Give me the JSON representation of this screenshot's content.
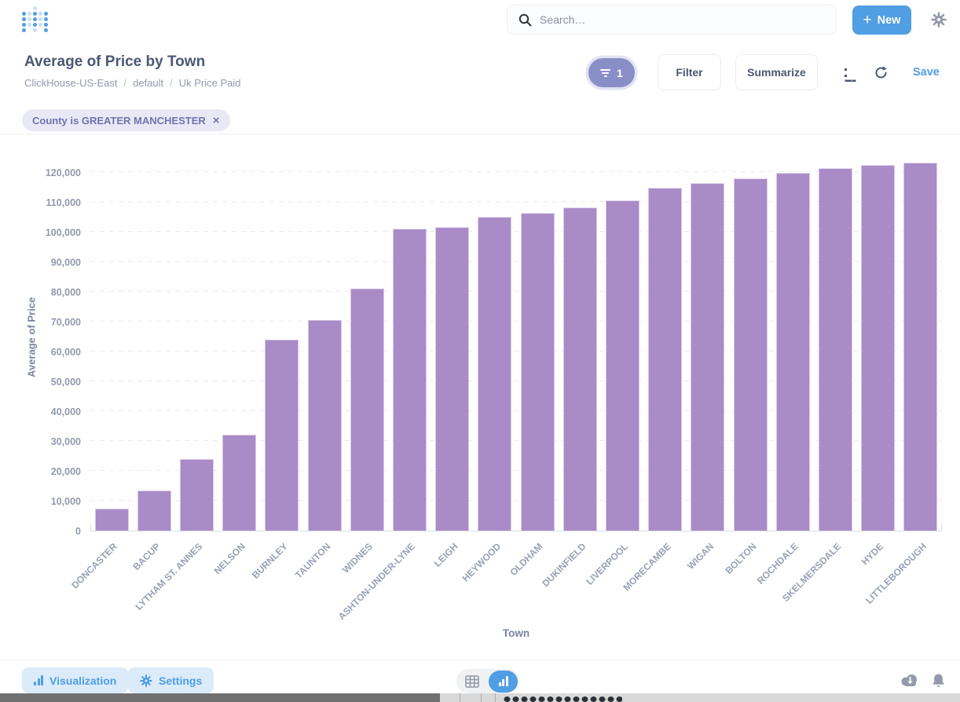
{
  "header": {
    "search_placeholder": "Search…",
    "new_button_label": "New",
    "plus_glyph": "+"
  },
  "question": {
    "title": "Average of Price by Town",
    "breadcrumb": {
      "database": "ClickHouse-US-East",
      "schema": "default",
      "table": "Uk Price Paid",
      "separator": "/"
    },
    "filter_count": "1",
    "filter_label": "Filter",
    "summarize_label": "Summarize",
    "save_label": "Save"
  },
  "filter_chips": {
    "county": {
      "label": "County is GREATER MANCHESTER",
      "close_glyph": "×"
    }
  },
  "chart_data": {
    "type": "bar",
    "title": "Average of Price by Town",
    "xlabel": "Town",
    "ylabel": "Average of Price",
    "ylim": [
      0,
      130000
    ],
    "yticks": [
      0,
      10000,
      20000,
      30000,
      40000,
      50000,
      60000,
      70000,
      80000,
      90000,
      100000,
      110000,
      120000
    ],
    "ytick_labels": [
      "0",
      "10,000",
      "20,000",
      "30,000",
      "40,000",
      "50,000",
      "60,000",
      "70,000",
      "80,000",
      "90,000",
      "100,000",
      "110,000",
      "120,000"
    ],
    "grid": "dashed-horizontal",
    "legend": "none",
    "bar_color": "#A98BC7",
    "categories": [
      "DONCASTER",
      "BACUP",
      "LYTHAM ST. ANNES",
      "NELSON",
      "BURNLEY",
      "TAUNTON",
      "WIDNES",
      "ASHTON-UNDER-LYNE",
      "LEIGH",
      "HEYWOOD",
      "OLDHAM",
      "DUKINFIELD",
      "LIVERPOOL",
      "MORECAMBE",
      "WIGAN",
      "BOLTON",
      "ROCHDALE",
      "SKELMERSDALE",
      "HYDE",
      "LITTLEBOROUGH"
    ],
    "values": [
      7400,
      13500,
      24000,
      32000,
      64000,
      70500,
      81000,
      101000,
      101500,
      105000,
      106300,
      108200,
      110600,
      114800,
      116400,
      117900,
      119800,
      121400,
      122500,
      123200
    ]
  },
  "footer": {
    "visualization_label": "Visualization",
    "settings_label": "Settings"
  },
  "colors": {
    "brand_blue": "#509EE3",
    "title_text": "#4C5773",
    "muted_text": "#949AAB",
    "filter_pill_purple": "#8A8EC6",
    "chip_bg": "#E9E9F6",
    "chip_text": "#7173AD",
    "bar_purple": "#A98BC7"
  }
}
